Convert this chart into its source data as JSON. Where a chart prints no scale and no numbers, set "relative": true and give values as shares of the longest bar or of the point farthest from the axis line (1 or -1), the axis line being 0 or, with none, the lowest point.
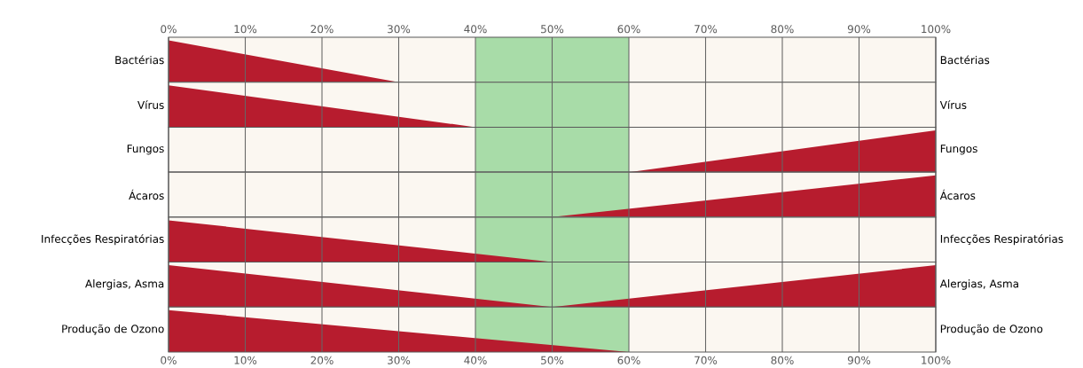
{
  "chart_data": [
    {
      "type": "area",
      "relative": true,
      "ylabel": "Bactérias",
      "y2label": "Bactérias",
      "xlim": [
        0,
        100
      ],
      "xticks": [
        {
          "value": 0,
          "label": "0%"
        },
        {
          "value": 10,
          "label": "10%"
        },
        {
          "value": 20,
          "label": "20%"
        },
        {
          "value": 30,
          "label": "30%"
        },
        {
          "value": 40,
          "label": "40%"
        },
        {
          "value": 50,
          "label": "50%"
        },
        {
          "value": 60,
          "label": "60%"
        },
        {
          "value": 70,
          "label": "70%"
        },
        {
          "value": 80,
          "label": "80%"
        },
        {
          "value": 90,
          "label": "90%"
        },
        {
          "value": 100,
          "label": "100%"
        }
      ],
      "grid": "x",
      "bands": [
        {
          "axis": "x",
          "from": 40,
          "to": 60,
          "color": "#a8dca8"
        }
      ],
      "series": [
        {
          "color": "#b71c2e",
          "x": [
            0,
            30
          ],
          "values": [
            1,
            0
          ]
        }
      ]
    },
    {
      "type": "area",
      "relative": true,
      "ylabel": "Vírus",
      "y2label": "Vírus",
      "xlim": [
        0,
        100
      ],
      "xticks": [
        0,
        10,
        20,
        30,
        40,
        50,
        60,
        70,
        80,
        90,
        100
      ],
      "tick_labels": false,
      "grid": "x",
      "bands": [
        {
          "axis": "x",
          "from": 40,
          "to": 60,
          "color": "#a8dca8"
        }
      ],
      "series": [
        {
          "color": "#b71c2e",
          "x": [
            0,
            40
          ],
          "values": [
            1,
            0
          ]
        }
      ]
    },
    {
      "type": "area",
      "relative": true,
      "ylabel": "Fungos",
      "y2label": "Fungos",
      "xlim": [
        0,
        100
      ],
      "xticks": [
        0,
        10,
        20,
        30,
        40,
        50,
        60,
        70,
        80,
        90,
        100
      ],
      "tick_labels": false,
      "grid": "x",
      "bands": [
        {
          "axis": "x",
          "from": 40,
          "to": 60,
          "color": "#a8dca8"
        }
      ],
      "series": [
        {
          "color": "#b71c2e",
          "x": [
            60,
            100
          ],
          "values": [
            0,
            1
          ]
        }
      ]
    },
    {
      "type": "area",
      "relative": true,
      "ylabel": "Ácaros",
      "y2label": "Ácaros",
      "xlim": [
        0,
        100
      ],
      "xticks": [
        0,
        10,
        20,
        30,
        40,
        50,
        60,
        70,
        80,
        90,
        100
      ],
      "tick_labels": false,
      "grid": "x",
      "bands": [
        {
          "axis": "x",
          "from": 40,
          "to": 60,
          "color": "#a8dca8"
        }
      ],
      "series": [
        {
          "color": "#b71c2e",
          "x": [
            50,
            100
          ],
          "values": [
            0,
            1
          ]
        }
      ]
    },
    {
      "type": "area",
      "relative": true,
      "ylabel": "Infecções Respiratórias",
      "y2label": "Infecções Respiratórias",
      "xlim": [
        0,
        100
      ],
      "xticks": [
        0,
        10,
        20,
        30,
        40,
        50,
        60,
        70,
        80,
        90,
        100
      ],
      "tick_labels": false,
      "grid": "x",
      "bands": [
        {
          "axis": "x",
          "from": 40,
          "to": 60,
          "color": "#a8dca8"
        }
      ],
      "series": [
        {
          "color": "#b71c2e",
          "x": [
            0,
            50
          ],
          "values": [
            1,
            0
          ]
        }
      ]
    },
    {
      "type": "area",
      "relative": true,
      "ylabel": "Alergias, Asma",
      "y2label": "Alergias, Asma",
      "xlim": [
        0,
        100
      ],
      "xticks": [
        0,
        10,
        20,
        30,
        40,
        50,
        60,
        70,
        80,
        90,
        100
      ],
      "tick_labels": false,
      "grid": "x",
      "bands": [
        {
          "axis": "x",
          "from": 40,
          "to": 60,
          "color": "#a8dca8"
        }
      ],
      "series": [
        {
          "color": "#b71c2e",
          "x": [
            0,
            50,
            100
          ],
          "values": [
            1,
            0,
            1
          ]
        }
      ]
    },
    {
      "type": "area",
      "relative": true,
      "ylabel": "Produção de Ozono",
      "y2label": "Produção de Ozono",
      "xlim": [
        0,
        100
      ],
      "xticks": [
        {
          "value": 0,
          "label": "0%"
        },
        {
          "value": 10,
          "label": "10%"
        },
        {
          "value": 20,
          "label": "20%"
        },
        {
          "value": 30,
          "label": "30%"
        },
        {
          "value": 40,
          "label": "40%"
        },
        {
          "value": 50,
          "label": "50%"
        },
        {
          "value": 60,
          "label": "60%"
        },
        {
          "value": 70,
          "label": "70%"
        },
        {
          "value": 80,
          "label": "80%"
        },
        {
          "value": 90,
          "label": "90%"
        },
        {
          "value": 100,
          "label": "100%"
        }
      ],
      "grid": "x",
      "bands": [
        {
          "axis": "x",
          "from": 40,
          "to": 60,
          "color": "#a8dca8"
        }
      ],
      "series": [
        {
          "color": "#b71c2e",
          "x": [
            0,
            60
          ],
          "values": [
            1,
            0
          ]
        }
      ]
    }
  ]
}
